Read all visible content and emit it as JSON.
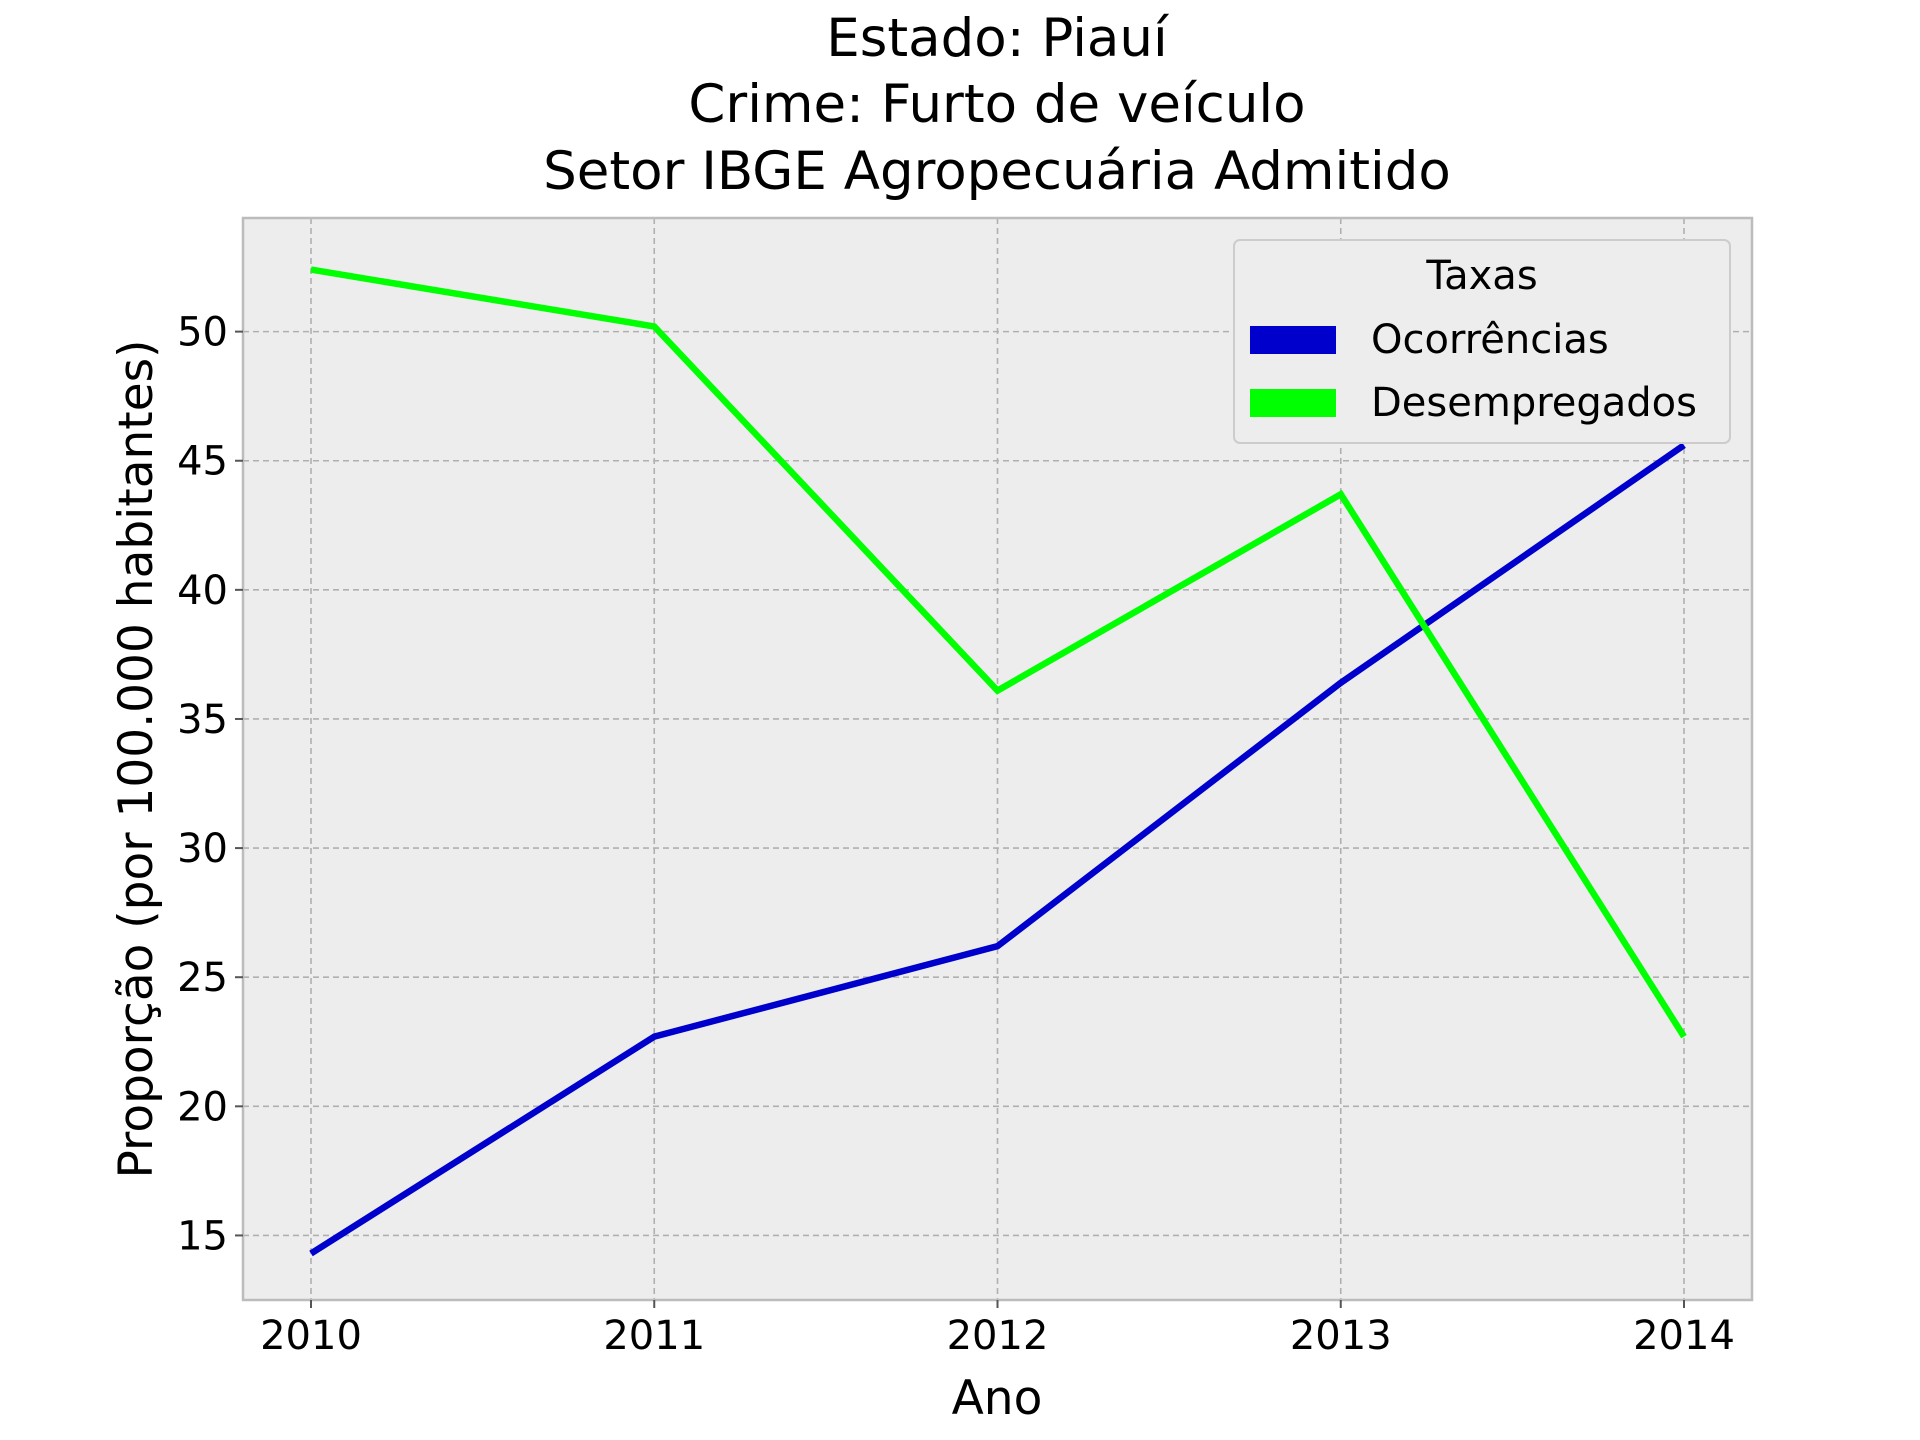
{
  "chart_data": {
    "type": "line",
    "title_lines": [
      "Estado: Piauí",
      "Crime: Furto de veículo",
      "Setor IBGE  Agropecuária   Admitido"
    ],
    "xlabel": "Ano",
    "ylabel": "Proporção (por 100.000 habitantes)",
    "x": [
      "2010",
      "2011",
      "2012",
      "2013",
      "2014"
    ],
    "yticks": [
      "15",
      "20",
      "25",
      "30",
      "35",
      "40",
      "45",
      "50"
    ],
    "ylim": [
      12.5,
      54.4
    ],
    "grid": true,
    "legend": {
      "title": "Taxas",
      "position": "top-right"
    },
    "series": [
      {
        "name": "Ocorrências",
        "color": "#0000cc",
        "values": [
          14.3,
          22.7,
          26.2,
          36.4,
          45.6
        ]
      },
      {
        "name": "Desempregados",
        "color": "#00ff00",
        "values": [
          52.4,
          50.2,
          36.1,
          43.7,
          22.7
        ]
      }
    ],
    "background": "#ededed",
    "grid_color": "#b0b0b0"
  }
}
